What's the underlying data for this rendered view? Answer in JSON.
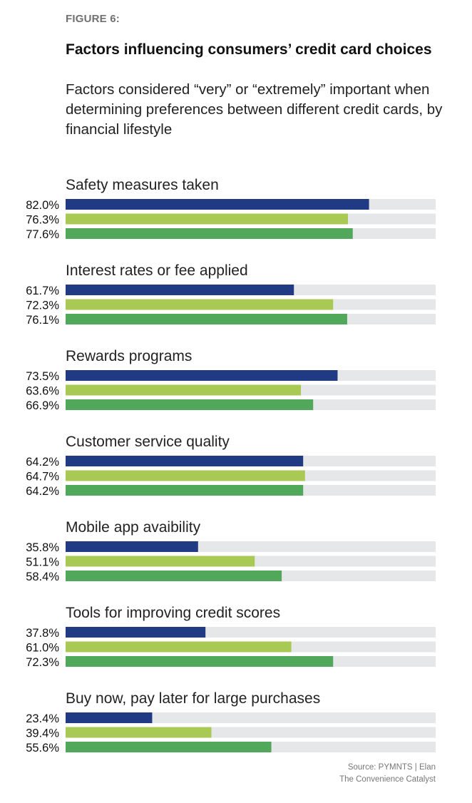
{
  "figure_label": "FIGURE 6:",
  "title": "Factors influencing consumers’ credit card choices",
  "subtitle": "Factors considered “very” or “extremely” important when determining preferences between different credit cards, by financial lifestyle",
  "source": {
    "line1": "Source: PYMNTS  |  Elan",
    "line2": "The Convenience Catalyst"
  },
  "chart_data": {
    "type": "bar",
    "orientation": "horizontal",
    "title": "Factors influencing consumers’ credit card choices",
    "subtitle": "Factors considered “very” or “extremely” important when determining preferences between different credit cards, by financial lifestyle",
    "xlabel": "",
    "ylabel": "",
    "xlim": [
      0,
      100
    ],
    "value_suffix": "%",
    "grid": false,
    "legend": null,
    "categories": [
      "Safety measures taken",
      "Interest rates or fee applied",
      "Rewards programs",
      "Customer service quality",
      "Mobile app avaibility",
      "Tools for improving credit scores",
      "Buy now, pay later for large purchases"
    ],
    "series": [
      {
        "name": "Series 1",
        "color": "#213a84",
        "values": [
          82.0,
          61.7,
          73.5,
          64.2,
          35.8,
          37.8,
          23.4
        ]
      },
      {
        "name": "Series 2",
        "color": "#a8c954",
        "values": [
          76.3,
          72.3,
          63.6,
          64.7,
          51.1,
          61.0,
          39.4
        ]
      },
      {
        "name": "Series 3",
        "color": "#52a85a",
        "values": [
          77.6,
          76.1,
          66.9,
          64.2,
          58.4,
          72.3,
          55.6
        ]
      }
    ],
    "track_color": "#e6e7e9"
  }
}
